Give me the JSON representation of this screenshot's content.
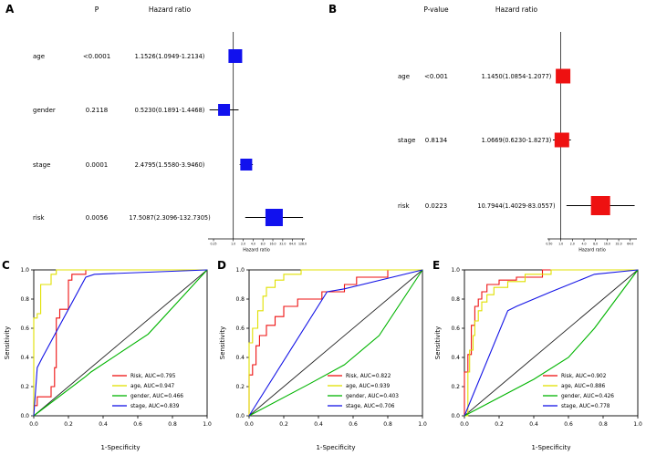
{
  "panels": {
    "a": {
      "letter": "A"
    },
    "b": {
      "letter": "B"
    },
    "c": {
      "letter": "C"
    },
    "d": {
      "letter": "D"
    },
    "e": {
      "letter": "E"
    }
  },
  "chart_data": [
    {
      "id": "A",
      "type": "forest",
      "col_headers": {
        "p": "P",
        "hr": "Hazard ratio"
      },
      "rows": [
        {
          "label": "age",
          "p": "<0.0001",
          "hr_text": "1.1526(1.0949-1.2134)",
          "hr": 1.1526,
          "lo": 1.0949,
          "hi": 1.2134,
          "size": 15
        },
        {
          "label": "gender",
          "p": "0.2118",
          "hr_text": "0.5230(0.1891-1.4468)",
          "hr": 0.523,
          "lo": 0.1891,
          "hi": 1.4468,
          "size": 13
        },
        {
          "label": "stage",
          "p": "0.0001",
          "hr_text": "2.4795(1.5580-3.9460)",
          "hr": 2.4795,
          "lo": 1.558,
          "hi": 3.946,
          "size": 13
        },
        {
          "label": "risk",
          "p": "0.0056",
          "hr_text": "17.5087(2.3096-132.7305)",
          "hr": 17.5087,
          "lo": 2.3096,
          "hi": 132.7305,
          "size": 19
        }
      ],
      "axis": {
        "label": "Hazard ratio",
        "scale": "log",
        "min": 0.17,
        "max": 150,
        "ref": 1,
        "ticks": [
          0.25,
          1,
          2,
          4,
          8,
          16,
          32,
          64,
          128
        ]
      },
      "marker_color": "#1111ee"
    },
    {
      "id": "B",
      "type": "forest",
      "col_headers": {
        "p": "P-value",
        "hr": "Hazard ratio"
      },
      "rows": [
        {
          "label": "age",
          "p": "<0.001",
          "hr_text": "1.1450(1.0854-1.2077)",
          "hr": 1.145,
          "lo": 1.0854,
          "hi": 1.2077,
          "size": 16
        },
        {
          "label": "stage",
          "p": "0.8134",
          "hr_text": "1.0669(0.6230-1.8273)",
          "hr": 1.0669,
          "lo": 0.623,
          "hi": 1.8273,
          "size": 16
        },
        {
          "label": "risk",
          "p": "0.0223",
          "hr_text": "10.7944(1.4029-83.0557)",
          "hr": 10.7944,
          "lo": 1.4029,
          "hi": 83.0557,
          "size": 21
        }
      ],
      "axis": {
        "label": "Hazard ratio",
        "scale": "log",
        "min": 0.45,
        "max": 95,
        "ref": 1,
        "ticks": [
          0.5,
          1,
          2,
          4,
          8,
          16,
          32,
          64
        ]
      },
      "marker_color": "#ee1111"
    },
    {
      "id": "C",
      "type": "line",
      "subtype": "roc",
      "xlabel": "1-Specificity",
      "ylabel": "Sensitivity",
      "xlim": [
        0,
        1
      ],
      "ylim": [
        0,
        1
      ],
      "xticks": [
        0,
        0.2,
        0.4,
        0.6,
        0.8,
        1
      ],
      "yticks": [
        0,
        0.2,
        0.4,
        0.6,
        0.8,
        1
      ],
      "legend_position": "bottom-right",
      "series": [
        {
          "name": "Risk, AUC=0.795",
          "auc": 0.795,
          "color": "#ee1111",
          "points": [
            [
              0,
              0
            ],
            [
              0,
              0.07
            ],
            [
              0.02,
              0.07
            ],
            [
              0.02,
              0.13
            ],
            [
              0.1,
              0.13
            ],
            [
              0.1,
              0.2
            ],
            [
              0.12,
              0.2
            ],
            [
              0.12,
              0.33
            ],
            [
              0.13,
              0.33
            ],
            [
              0.13,
              0.67
            ],
            [
              0.15,
              0.67
            ],
            [
              0.15,
              0.73
            ],
            [
              0.2,
              0.73
            ],
            [
              0.2,
              0.93
            ],
            [
              0.22,
              0.93
            ],
            [
              0.22,
              0.97
            ],
            [
              0.3,
              0.97
            ],
            [
              0.3,
              1
            ],
            [
              1,
              1
            ]
          ]
        },
        {
          "name": "age, AUC=0.947",
          "auc": 0.947,
          "color": "#e0e000",
          "points": [
            [
              0,
              0
            ],
            [
              0,
              0.67
            ],
            [
              0.02,
              0.67
            ],
            [
              0.02,
              0.7
            ],
            [
              0.04,
              0.7
            ],
            [
              0.04,
              0.9
            ],
            [
              0.1,
              0.9
            ],
            [
              0.1,
              0.97
            ],
            [
              0.13,
              0.97
            ],
            [
              0.13,
              1
            ],
            [
              1,
              1
            ]
          ]
        },
        {
          "name": "gender, AUC=0.466",
          "auc": 0.466,
          "color": "#00b400",
          "points": [
            [
              0,
              0
            ],
            [
              0.3,
              0.27
            ],
            [
              0.33,
              0.3
            ],
            [
              0.66,
              0.56
            ],
            [
              1,
              1
            ]
          ]
        },
        {
          "name": "stage, AUC=0.839",
          "auc": 0.839,
          "color": "#1414e6",
          "points": [
            [
              0,
              0
            ],
            [
              0.02,
              0.33
            ],
            [
              0.05,
              0.4
            ],
            [
              0.3,
              0.95
            ],
            [
              0.35,
              0.97
            ],
            [
              1,
              1
            ]
          ]
        }
      ]
    },
    {
      "id": "D",
      "type": "line",
      "subtype": "roc",
      "xlabel": "1-Specificity",
      "ylabel": "Sensitivity",
      "xlim": [
        0,
        1
      ],
      "ylim": [
        0,
        1
      ],
      "xticks": [
        0,
        0.2,
        0.4,
        0.6,
        0.8,
        1
      ],
      "yticks": [
        0,
        0.2,
        0.4,
        0.6,
        0.8,
        1
      ],
      "legend_position": "bottom-right",
      "series": [
        {
          "name": "Risk, AUC=0.822",
          "auc": 0.822,
          "color": "#ee1111",
          "points": [
            [
              0,
              0
            ],
            [
              0,
              0.28
            ],
            [
              0.02,
              0.28
            ],
            [
              0.02,
              0.35
            ],
            [
              0.04,
              0.35
            ],
            [
              0.04,
              0.48
            ],
            [
              0.06,
              0.48
            ],
            [
              0.06,
              0.55
            ],
            [
              0.1,
              0.55
            ],
            [
              0.1,
              0.62
            ],
            [
              0.15,
              0.62
            ],
            [
              0.15,
              0.68
            ],
            [
              0.2,
              0.68
            ],
            [
              0.2,
              0.75
            ],
            [
              0.28,
              0.75
            ],
            [
              0.28,
              0.8
            ],
            [
              0.42,
              0.8
            ],
            [
              0.42,
              0.85
            ],
            [
              0.55,
              0.85
            ],
            [
              0.55,
              0.9
            ],
            [
              0.62,
              0.9
            ],
            [
              0.62,
              0.95
            ],
            [
              0.8,
              0.95
            ],
            [
              0.8,
              1
            ],
            [
              1,
              1
            ]
          ]
        },
        {
          "name": "age, AUC=0.939",
          "auc": 0.939,
          "color": "#e0e000",
          "points": [
            [
              0,
              0
            ],
            [
              0,
              0.5
            ],
            [
              0.02,
              0.5
            ],
            [
              0.02,
              0.6
            ],
            [
              0.05,
              0.6
            ],
            [
              0.05,
              0.72
            ],
            [
              0.08,
              0.72
            ],
            [
              0.08,
              0.82
            ],
            [
              0.1,
              0.82
            ],
            [
              0.1,
              0.88
            ],
            [
              0.15,
              0.88
            ],
            [
              0.15,
              0.93
            ],
            [
              0.2,
              0.93
            ],
            [
              0.2,
              0.97
            ],
            [
              0.3,
              0.97
            ],
            [
              0.3,
              1
            ],
            [
              1,
              1
            ]
          ]
        },
        {
          "name": "gender, AUC=0.403",
          "auc": 0.403,
          "color": "#00b400",
          "points": [
            [
              0,
              0
            ],
            [
              0.35,
              0.22
            ],
            [
              0.55,
              0.35
            ],
            [
              0.75,
              0.55
            ],
            [
              1,
              1
            ]
          ]
        },
        {
          "name": "stage, AUC=0.706",
          "auc": 0.706,
          "color": "#1414e6",
          "points": [
            [
              0,
              0
            ],
            [
              0.45,
              0.85
            ],
            [
              0.55,
              0.87
            ],
            [
              1,
              1
            ]
          ]
        }
      ]
    },
    {
      "id": "E",
      "type": "line",
      "subtype": "roc",
      "xlabel": "1-Specificity",
      "ylabel": "Sensitivity",
      "xlim": [
        0,
        1
      ],
      "ylim": [
        0,
        1
      ],
      "xticks": [
        0,
        0.2,
        0.4,
        0.6,
        0.8,
        1
      ],
      "yticks": [
        0,
        0.2,
        0.4,
        0.6,
        0.8,
        1
      ],
      "legend_position": "bottom-right",
      "series": [
        {
          "name": "Risk, AUC=0.902",
          "auc": 0.902,
          "color": "#ee1111",
          "points": [
            [
              0,
              0
            ],
            [
              0,
              0.3
            ],
            [
              0.02,
              0.3
            ],
            [
              0.02,
              0.42
            ],
            [
              0.04,
              0.42
            ],
            [
              0.04,
              0.62
            ],
            [
              0.06,
              0.62
            ],
            [
              0.06,
              0.75
            ],
            [
              0.08,
              0.75
            ],
            [
              0.08,
              0.8
            ],
            [
              0.1,
              0.8
            ],
            [
              0.1,
              0.85
            ],
            [
              0.13,
              0.85
            ],
            [
              0.13,
              0.9
            ],
            [
              0.2,
              0.9
            ],
            [
              0.2,
              0.93
            ],
            [
              0.3,
              0.93
            ],
            [
              0.3,
              0.95
            ],
            [
              0.45,
              0.95
            ],
            [
              0.45,
              1
            ],
            [
              1,
              1
            ]
          ]
        },
        {
          "name": "age, AUC=0.886",
          "auc": 0.886,
          "color": "#e0e000",
          "points": [
            [
              0,
              0
            ],
            [
              0.02,
              0
            ],
            [
              0.02,
              0.3
            ],
            [
              0.03,
              0.3
            ],
            [
              0.03,
              0.45
            ],
            [
              0.05,
              0.45
            ],
            [
              0.05,
              0.55
            ],
            [
              0.06,
              0.55
            ],
            [
              0.06,
              0.65
            ],
            [
              0.08,
              0.65
            ],
            [
              0.08,
              0.72
            ],
            [
              0.1,
              0.72
            ],
            [
              0.1,
              0.78
            ],
            [
              0.13,
              0.78
            ],
            [
              0.13,
              0.83
            ],
            [
              0.17,
              0.83
            ],
            [
              0.17,
              0.88
            ],
            [
              0.25,
              0.88
            ],
            [
              0.25,
              0.92
            ],
            [
              0.35,
              0.92
            ],
            [
              0.35,
              0.97
            ],
            [
              0.5,
              0.97
            ],
            [
              0.5,
              1
            ],
            [
              1,
              1
            ]
          ]
        },
        {
          "name": "gender, AUC=0.426",
          "auc": 0.426,
          "color": "#00b400",
          "points": [
            [
              0,
              0
            ],
            [
              0.4,
              0.25
            ],
            [
              0.6,
              0.4
            ],
            [
              0.75,
              0.6
            ],
            [
              1,
              1
            ]
          ]
        },
        {
          "name": "stage, AUC=0.778",
          "auc": 0.778,
          "color": "#1414e6",
          "points": [
            [
              0,
              0
            ],
            [
              0.25,
              0.72
            ],
            [
              0.3,
              0.75
            ],
            [
              0.5,
              0.85
            ],
            [
              0.75,
              0.97
            ],
            [
              1,
              1
            ]
          ]
        }
      ]
    }
  ]
}
